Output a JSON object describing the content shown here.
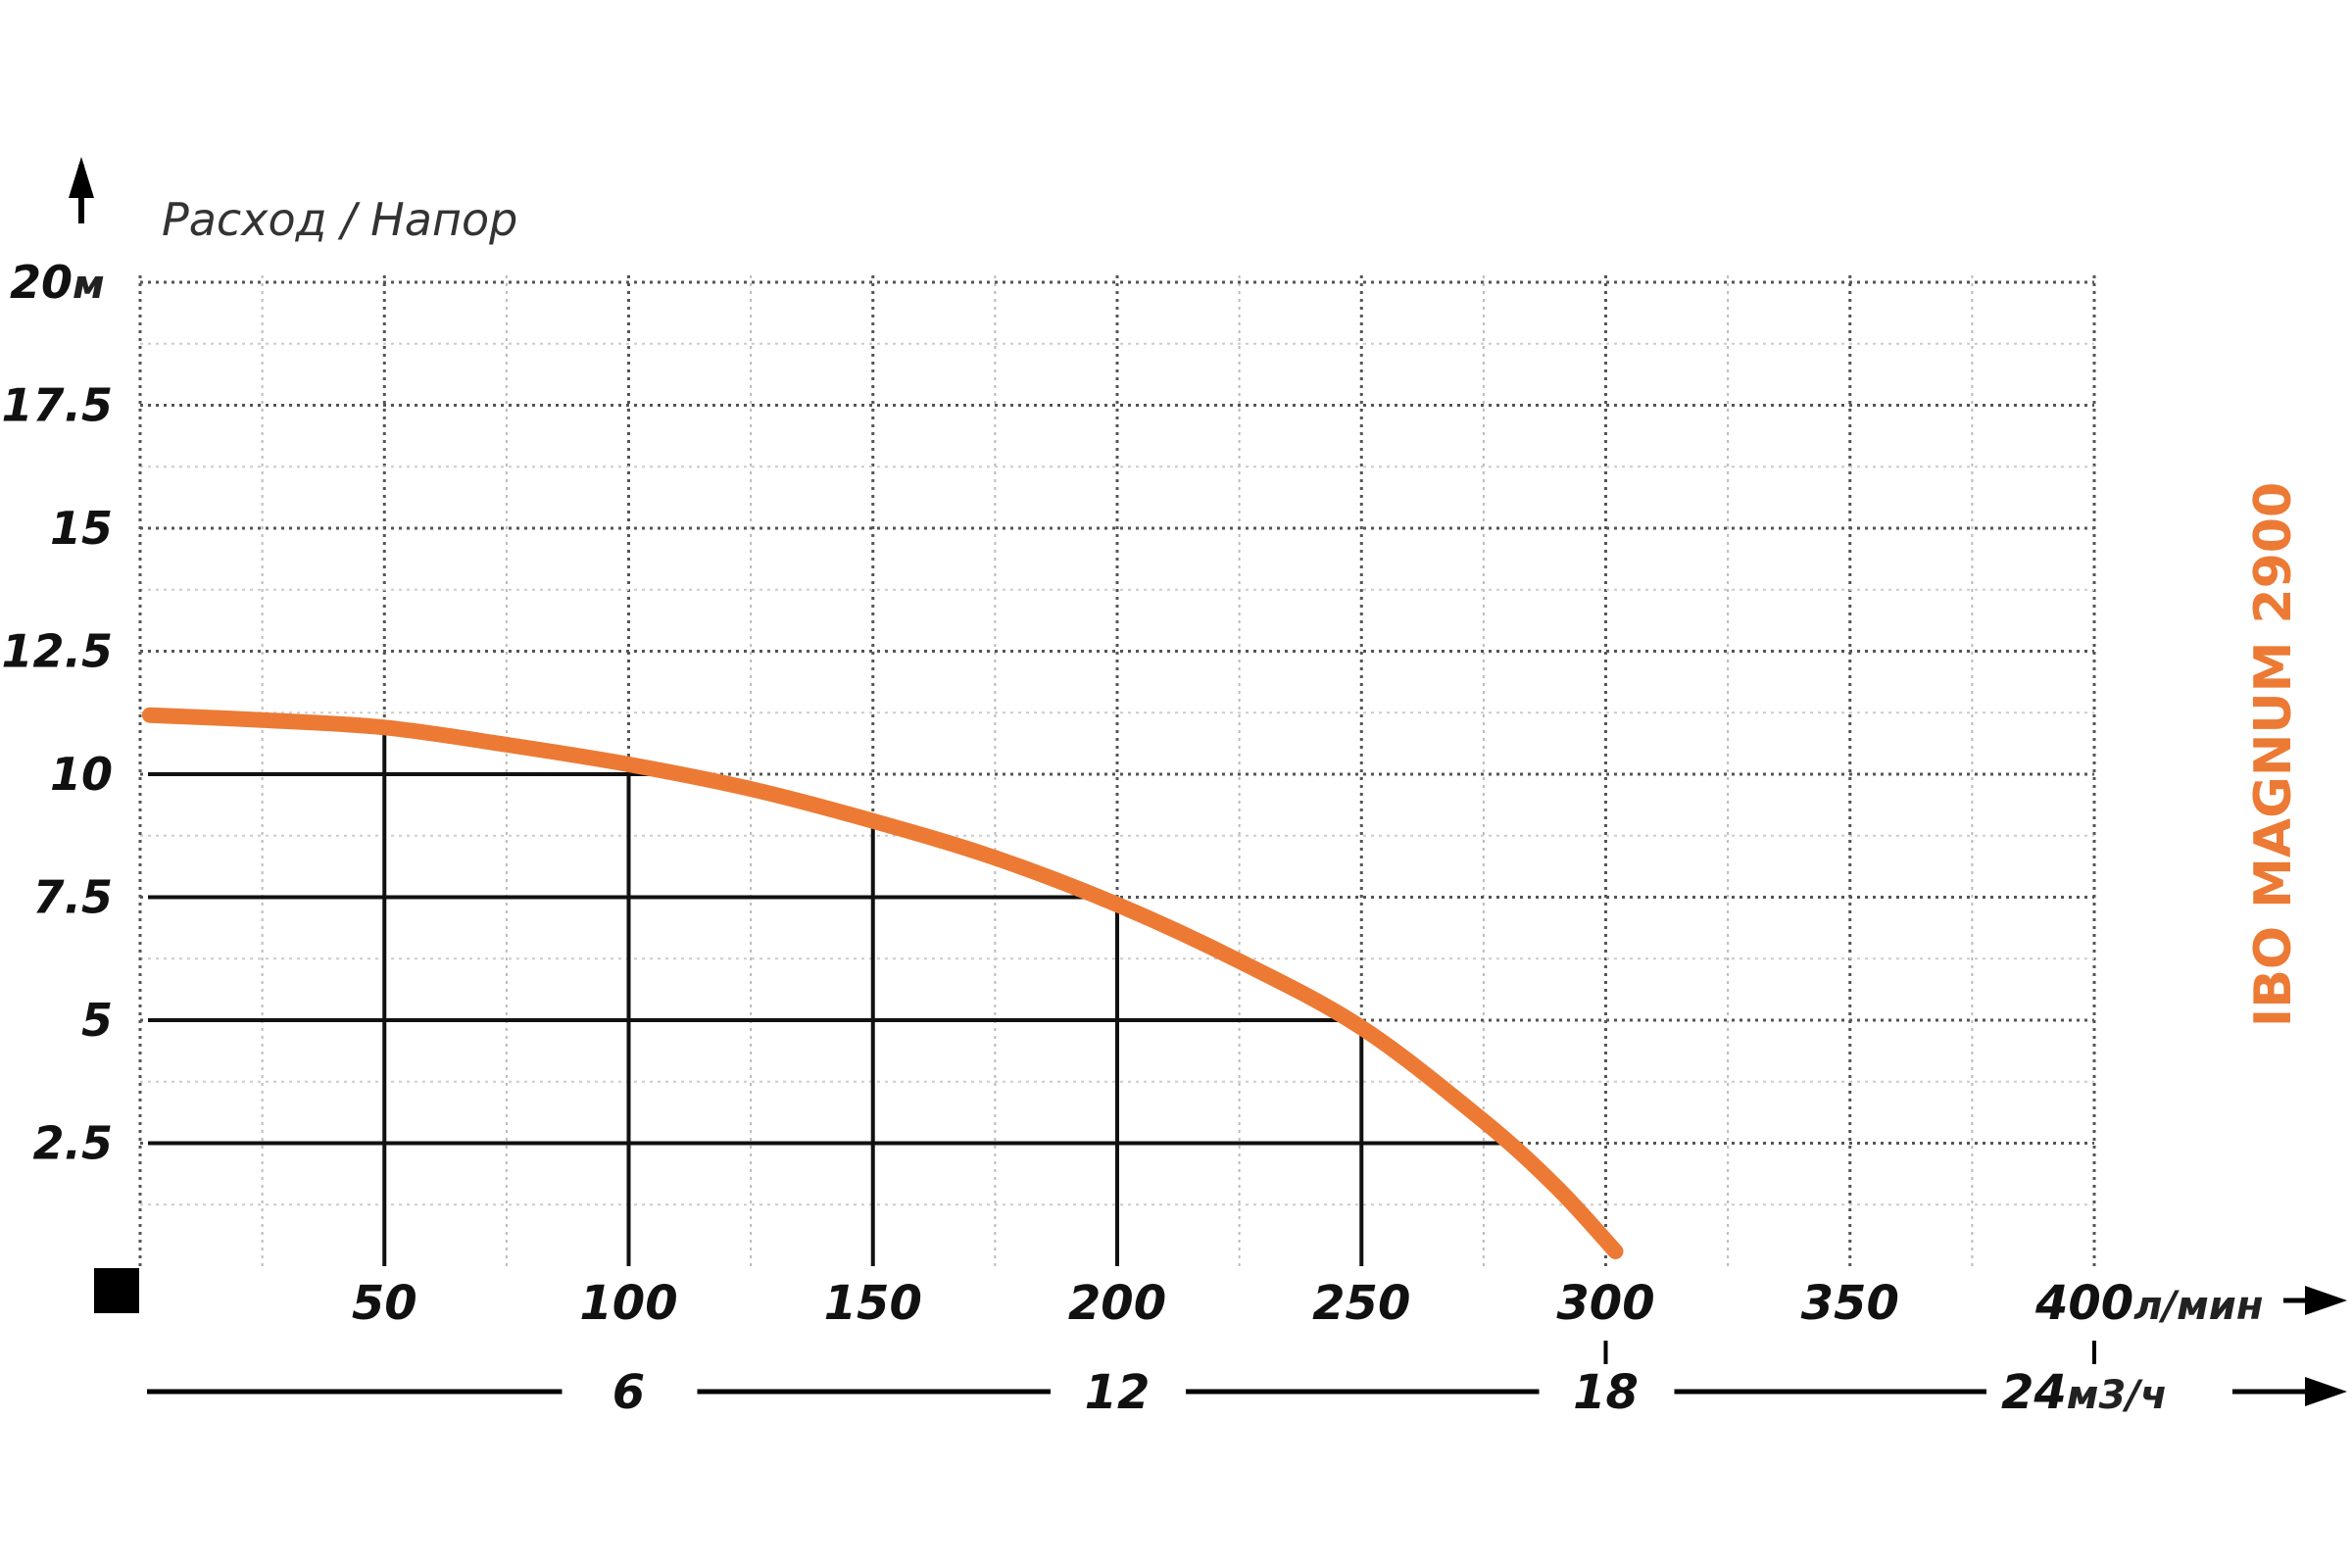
{
  "chart_data": {
    "type": "line",
    "title": "Расход / Напор",
    "model_label": "IBO MAGNUM 2900",
    "y_axis": {
      "unit": "м",
      "ticks": [
        {
          "value": 20,
          "label": "20"
        },
        {
          "value": 17.5,
          "label": "17.5"
        },
        {
          "value": 15,
          "label": "15"
        },
        {
          "value": 12.5,
          "label": "12.5"
        },
        {
          "value": 10,
          "label": "10"
        },
        {
          "value": 7.5,
          "label": "7.5"
        },
        {
          "value": 5,
          "label": "5"
        },
        {
          "value": 2.5,
          "label": "2.5"
        }
      ],
      "ylim": [
        0,
        20
      ]
    },
    "x_axis": {
      "unit": "л/мин",
      "ticks": [
        {
          "value": 50,
          "label": "50"
        },
        {
          "value": 100,
          "label": "100"
        },
        {
          "value": 150,
          "label": "150"
        },
        {
          "value": 200,
          "label": "200"
        },
        {
          "value": 250,
          "label": "250"
        },
        {
          "value": 300,
          "label": "300"
        },
        {
          "value": 350,
          "label": "350"
        },
        {
          "value": 400,
          "label": "400"
        }
      ],
      "xlim": [
        0,
        400
      ]
    },
    "x2_axis": {
      "unit": "м3/ч",
      "ticks": [
        {
          "value": 6,
          "label": "6"
        },
        {
          "value": 12,
          "label": "12"
        },
        {
          "value": 18,
          "label": "18"
        },
        {
          "value": 24,
          "label": "24"
        }
      ]
    },
    "series": [
      {
        "color": "#ec7a35",
        "x": [
          2,
          25,
          50,
          75,
          100,
          125,
          150,
          175,
          200,
          225,
          250,
          275,
          290,
          302
        ],
        "y": [
          11.2,
          11.1,
          10.95,
          10.6,
          10.2,
          9.7,
          9.05,
          8.3,
          7.35,
          6.2,
          4.85,
          2.95,
          1.6,
          0.3
        ]
      }
    ],
    "operating_points": [
      {
        "x": 50,
        "y": 10.9
      },
      {
        "x": 100,
        "y": 10.2
      },
      {
        "x": 150,
        "y": 9.05
      },
      {
        "x": 200,
        "y": 7.35
      },
      {
        "x": 250,
        "y": 4.7
      },
      {
        "x": 275,
        "y": 2.5
      }
    ],
    "grid": true
  }
}
